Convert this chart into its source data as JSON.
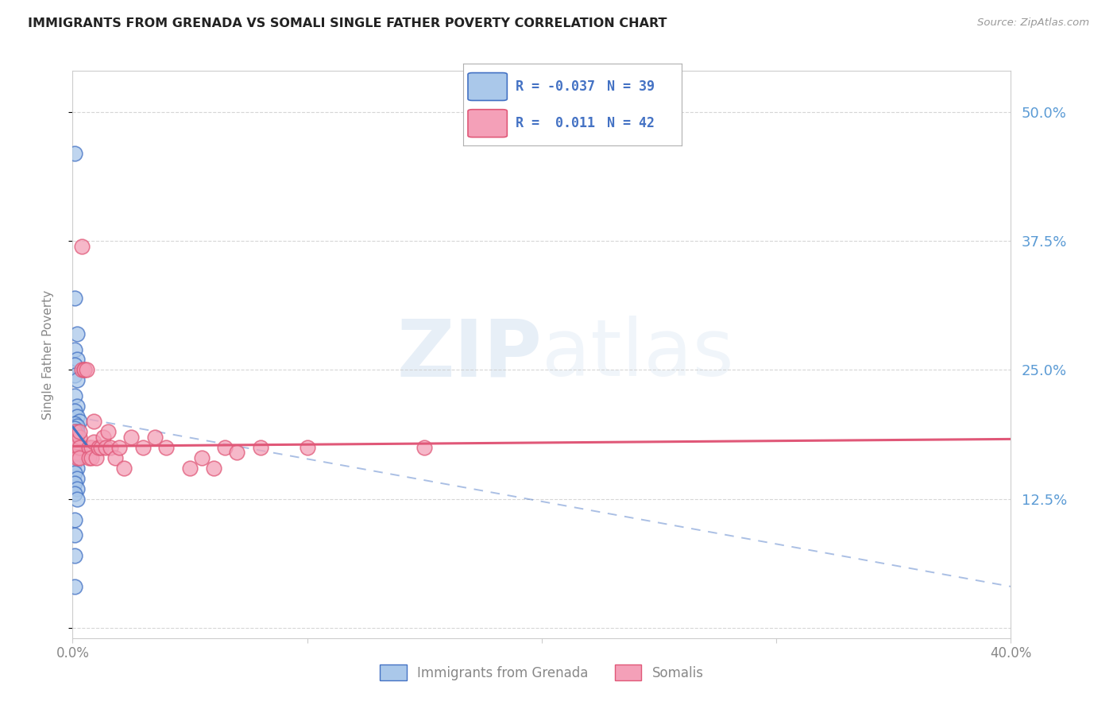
{
  "title": "IMMIGRANTS FROM GRENADA VS SOMALI SINGLE FATHER POVERTY CORRELATION CHART",
  "source": "Source: ZipAtlas.com",
  "ylabel": "Single Father Poverty",
  "yticks": [
    0.0,
    0.125,
    0.25,
    0.375,
    0.5
  ],
  "ytick_labels": [
    "",
    "12.5%",
    "25.0%",
    "37.5%",
    "50.0%"
  ],
  "xlim": [
    0.0,
    0.4
  ],
  "ylim": [
    -0.01,
    0.54
  ],
  "legend_r1": "-0.037",
  "legend_n1": "39",
  "legend_r2": "0.011",
  "legend_n2": "42",
  "grenada_color": "#aac8ea",
  "somali_color": "#f4a0b8",
  "grenada_line_color": "#4472c4",
  "somali_line_color": "#e05878",
  "grenada_scatter_x": [
    0.001,
    0.001,
    0.002,
    0.001,
    0.002,
    0.001,
    0.001,
    0.002,
    0.001,
    0.002,
    0.001,
    0.002,
    0.003,
    0.001,
    0.002,
    0.001,
    0.002,
    0.001,
    0.002,
    0.001,
    0.002,
    0.001,
    0.002,
    0.001,
    0.002,
    0.001,
    0.002,
    0.001,
    0.002,
    0.001,
    0.002,
    0.001,
    0.002,
    0.001,
    0.002,
    0.001,
    0.001,
    0.001,
    0.001
  ],
  "grenada_scatter_y": [
    0.46,
    0.32,
    0.285,
    0.27,
    0.26,
    0.255,
    0.245,
    0.24,
    0.225,
    0.215,
    0.21,
    0.205,
    0.2,
    0.198,
    0.196,
    0.193,
    0.19,
    0.188,
    0.186,
    0.184,
    0.182,
    0.18,
    0.178,
    0.175,
    0.172,
    0.168,
    0.165,
    0.16,
    0.155,
    0.15,
    0.145,
    0.14,
    0.135,
    0.13,
    0.125,
    0.105,
    0.09,
    0.07,
    0.04
  ],
  "somali_scatter_x": [
    0.001,
    0.001,
    0.002,
    0.002,
    0.002,
    0.003,
    0.003,
    0.003,
    0.003,
    0.004,
    0.004,
    0.005,
    0.005,
    0.006,
    0.007,
    0.007,
    0.008,
    0.008,
    0.009,
    0.009,
    0.01,
    0.011,
    0.012,
    0.013,
    0.014,
    0.015,
    0.016,
    0.018,
    0.02,
    0.022,
    0.025,
    0.03,
    0.035,
    0.04,
    0.05,
    0.055,
    0.06,
    0.065,
    0.07,
    0.08,
    0.1,
    0.15
  ],
  "somali_scatter_y": [
    0.19,
    0.175,
    0.17,
    0.18,
    0.165,
    0.185,
    0.175,
    0.165,
    0.19,
    0.37,
    0.25,
    0.25,
    0.25,
    0.25,
    0.175,
    0.165,
    0.175,
    0.165,
    0.18,
    0.2,
    0.165,
    0.175,
    0.175,
    0.185,
    0.175,
    0.19,
    0.175,
    0.165,
    0.175,
    0.155,
    0.185,
    0.175,
    0.185,
    0.175,
    0.155,
    0.165,
    0.155,
    0.175,
    0.17,
    0.175,
    0.175,
    0.175
  ],
  "grenada_trendline_x": [
    0.0,
    0.006
  ],
  "grenada_trendline_y": [
    0.195,
    0.177
  ],
  "somali_trendline_x": [
    0.0,
    0.4
  ],
  "somali_trendline_y": [
    0.176,
    0.183
  ],
  "dashed_line_x": [
    0.0,
    0.4
  ],
  "dashed_line_y": [
    0.205,
    0.04
  ],
  "watermark_zip": "ZIP",
  "watermark_atlas": "atlas",
  "background_color": "#ffffff",
  "grid_color": "#cccccc",
  "axis_color": "#cccccc",
  "right_ytick_color": "#5b9bd5",
  "title_color": "#222222",
  "source_color": "#999999",
  "label_color": "#888888"
}
